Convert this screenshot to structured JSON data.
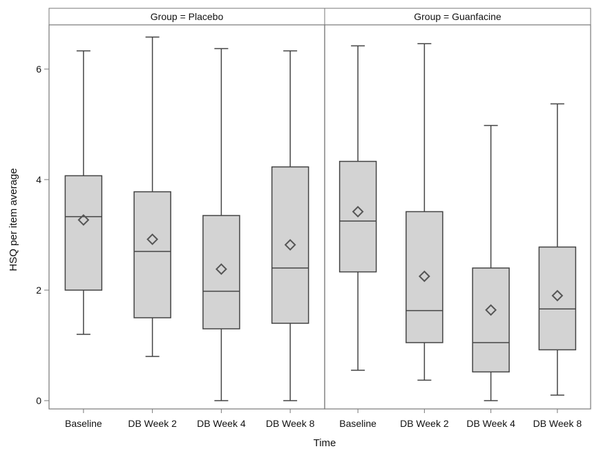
{
  "chart_data": {
    "type": "boxplot",
    "xlabel": "Time",
    "ylabel": "HSQ per item average",
    "ylim": [
      -0.15,
      6.8
    ],
    "yticks": [
      0,
      2,
      4,
      6
    ],
    "categories": [
      "Baseline",
      "DB Week 2",
      "DB Week 4",
      "DB Week 8"
    ],
    "grid": false,
    "mean_marker": "diamond",
    "colors": {
      "box_fill": "#d3d3d3",
      "box_stroke": "#444444",
      "frame": "#777777",
      "header_fill": "#ffffff"
    },
    "panels": [
      {
        "title": "Group = Placebo",
        "boxes": [
          {
            "category": "Baseline",
            "min": 1.2,
            "q1": 2.0,
            "median": 3.33,
            "q3": 4.07,
            "max": 6.33,
            "mean": 3.27
          },
          {
            "category": "DB Week 2",
            "min": 0.8,
            "q1": 1.5,
            "median": 2.7,
            "q3": 3.78,
            "max": 6.58,
            "mean": 2.92
          },
          {
            "category": "DB Week 4",
            "min": 0.0,
            "q1": 1.3,
            "median": 1.98,
            "q3": 3.35,
            "max": 6.37,
            "mean": 2.38
          },
          {
            "category": "DB Week 8",
            "min": 0.0,
            "q1": 1.4,
            "median": 2.4,
            "q3": 4.23,
            "max": 6.33,
            "mean": 2.82
          }
        ]
      },
      {
        "title": "Group = Guanfacine",
        "boxes": [
          {
            "category": "Baseline",
            "min": 0.55,
            "q1": 2.33,
            "median": 3.25,
            "q3": 4.33,
            "max": 6.42,
            "mean": 3.42
          },
          {
            "category": "DB Week 2",
            "min": 0.37,
            "q1": 1.05,
            "median": 1.63,
            "q3": 3.42,
            "max": 6.46,
            "mean": 2.25
          },
          {
            "category": "DB Week 4",
            "min": 0.0,
            "q1": 0.52,
            "median": 1.05,
            "q3": 2.4,
            "max": 4.98,
            "mean": 1.64
          },
          {
            "category": "DB Week 8",
            "min": 0.1,
            "q1": 0.92,
            "median": 1.66,
            "q3": 2.78,
            "max": 5.37,
            "mean": 1.9
          }
        ]
      }
    ]
  }
}
